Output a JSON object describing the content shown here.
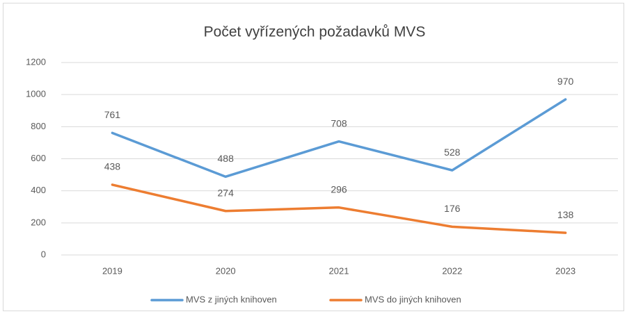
{
  "chart_data": {
    "type": "line",
    "title": "Počet vyřízených požadavků MVS",
    "categories": [
      "2019",
      "2020",
      "2021",
      "2022",
      "2023"
    ],
    "series": [
      {
        "name": "MVS z jiných knihoven",
        "color": "#5b9bd5",
        "values": [
          761,
          488,
          708,
          528,
          970
        ]
      },
      {
        "name": "MVS do jiných knihoven",
        "color": "#ed7d31",
        "values": [
          438,
          274,
          296,
          176,
          138
        ]
      }
    ],
    "ylim": [
      0,
      1200
    ],
    "yticks": [
      0,
      200,
      400,
      600,
      800,
      1000,
      1200
    ],
    "grid": true,
    "legend": "bottom"
  }
}
